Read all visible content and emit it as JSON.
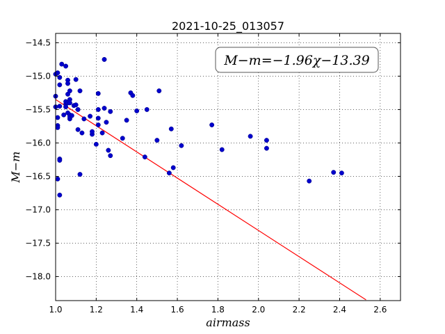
{
  "chart_data": {
    "type": "scatter",
    "title": "2021-10-25_013057",
    "xlabel": "airmass",
    "ylabel": "M−m",
    "xlim": [
      1.0,
      2.7
    ],
    "ylim": [
      -18.36,
      -14.36
    ],
    "y_inverted": true,
    "grid": true,
    "grid_style": "dotted",
    "x_ticks": [
      1.0,
      1.2,
      1.4,
      1.6,
      1.8,
      2.0,
      2.2,
      2.4,
      2.6
    ],
    "x_tick_labels": [
      "1.0",
      "1.2",
      "1.4",
      "1.6",
      "1.8",
      "2.0",
      "2.2",
      "2.4",
      "2.6"
    ],
    "y_ticks": [
      -14.5,
      -15.0,
      -15.5,
      -16.0,
      -16.5,
      -17.0,
      -17.5,
      -18.0
    ],
    "y_tick_labels": [
      "−14.5",
      "−15.0",
      "−15.5",
      "−16.0",
      "−16.5",
      "−17.0",
      "−17.5",
      "−18.0"
    ],
    "annotation": {
      "text": "M−m=−1.96χ−13.39",
      "placement": "top-right"
    },
    "fit_line": {
      "slope": -1.96,
      "intercept": -13.39,
      "x_range": [
        1.0,
        2.53
      ],
      "color": "#ff0000"
    },
    "series": [
      {
        "color": "#0000cc",
        "x": [
          1.0,
          1.0,
          1.0,
          1.01,
          1.01,
          1.01,
          1.01,
          1.01,
          1.02,
          1.02,
          1.02,
          1.02,
          1.02,
          1.02,
          1.03,
          1.04,
          1.05,
          1.05,
          1.05,
          1.05,
          1.06,
          1.06,
          1.06,
          1.06,
          1.06,
          1.07,
          1.07,
          1.07,
          1.07,
          1.07,
          1.07,
          1.08,
          1.09,
          1.1,
          1.1,
          1.11,
          1.11,
          1.12,
          1.12,
          1.13,
          1.14,
          1.17,
          1.18,
          1.18,
          1.2,
          1.21,
          1.21,
          1.21,
          1.21,
          1.23,
          1.24,
          1.24,
          1.25,
          1.26,
          1.27,
          1.27,
          1.33,
          1.35,
          1.37,
          1.38,
          1.4,
          1.44,
          1.45,
          1.5,
          1.51,
          1.56,
          1.57,
          1.58,
          1.62,
          1.77,
          1.82,
          1.96,
          2.04,
          2.04,
          2.25,
          2.37,
          2.41
        ],
        "y": [
          -14.97,
          -15.3,
          -15.46,
          -14.95,
          -15.62,
          -15.74,
          -15.77,
          -16.54,
          -15.13,
          -15.02,
          -16.24,
          -16.26,
          -16.78,
          -15.45,
          -14.82,
          -15.58,
          -14.85,
          -15.42,
          -15.46,
          -15.38,
          -15.06,
          -15.11,
          -15.27,
          -15.4,
          -15.55,
          -15.22,
          -15.35,
          -15.4,
          -15.58,
          -15.64,
          -15.61,
          -15.59,
          -15.44,
          -15.05,
          -15.43,
          -15.8,
          -15.5,
          -15.22,
          -16.47,
          -15.85,
          -15.64,
          -15.6,
          -15.87,
          -15.83,
          -16.02,
          -15.26,
          -15.5,
          -15.63,
          -15.73,
          -15.85,
          -15.48,
          -14.75,
          -15.69,
          -16.11,
          -16.19,
          -15.53,
          -15.93,
          -15.66,
          -15.25,
          -15.29,
          -15.52,
          -16.21,
          -15.5,
          -15.96,
          -15.22,
          -16.45,
          -15.79,
          -16.37,
          -16.04,
          -15.73,
          -16.1,
          -15.9,
          -15.96,
          -16.08,
          -16.57,
          -16.44,
          -16.45
        ]
      }
    ]
  }
}
